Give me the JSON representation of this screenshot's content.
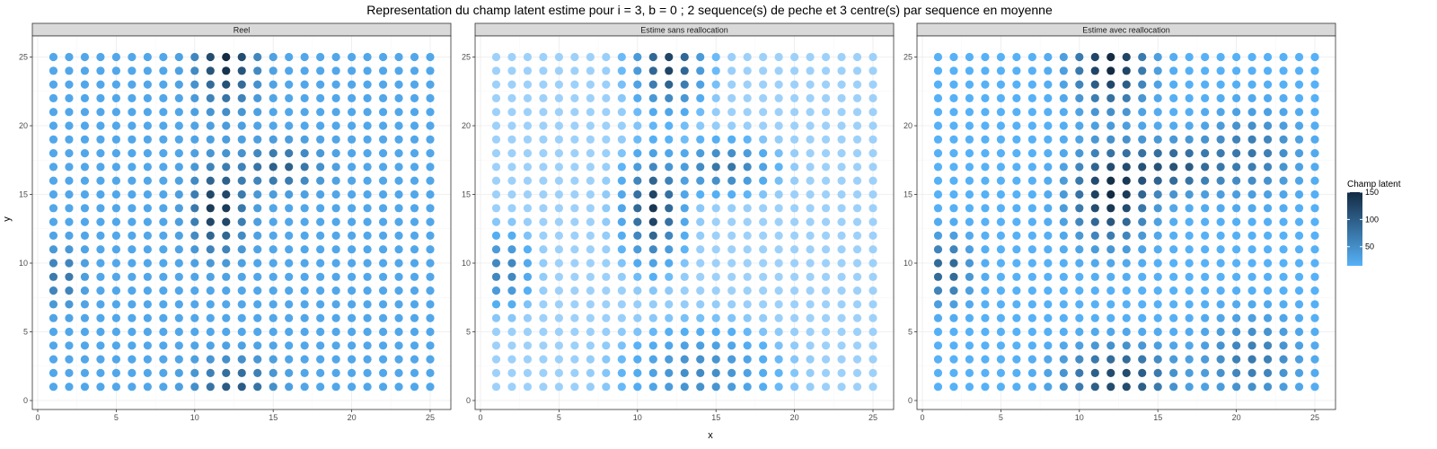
{
  "chart_data": {
    "type": "scatter",
    "title": "Representation du champ latent estime pour i = 3, b = 0 ; 2 sequence(s) de peche et 3 centre(s) par sequence en moyenne",
    "xlabel": "x",
    "ylabel": "y",
    "xlim": [
      0,
      26
    ],
    "ylim": [
      0,
      26
    ],
    "xticks": [
      0,
      5,
      10,
      15,
      20,
      25
    ],
    "yticks": [
      0,
      5,
      10,
      15,
      20,
      25
    ],
    "grid": true,
    "grid_x": [
      1,
      25
    ],
    "grid_y": [
      1,
      25
    ],
    "legend": {
      "title": "Champ latent",
      "position": "right",
      "range": [
        15,
        150
      ],
      "ticks": [
        50,
        100,
        150
      ],
      "color_low": "#56B1F7",
      "color_high": "#132B43"
    },
    "color_scale": "continuous gradient on Champ latent, low #56B1F7, high #132B43; estimated panels fade toward white where the latent field is near zero",
    "panels": [
      {
        "title": "Reel",
        "base": 25,
        "fade": 0,
        "hotspots": [
          {
            "x": 12,
            "y": 25,
            "height": 130,
            "sx": 1.2,
            "sy": 2.2
          },
          {
            "x": 11.5,
            "y": 14,
            "height": 120,
            "sx": 1.1,
            "sy": 2.0
          },
          {
            "x": 15.5,
            "y": 17,
            "height": 75,
            "sx": 1.6,
            "sy": 1.0
          },
          {
            "x": 1.5,
            "y": 9,
            "height": 55,
            "sx": 0.8,
            "sy": 1.3
          },
          {
            "x": 12.5,
            "y": 1,
            "height": 80,
            "sx": 1.6,
            "sy": 1.3
          }
        ]
      },
      {
        "title": "Estime sans reallocation",
        "base": 8,
        "fade": 1,
        "hotspots": [
          {
            "x": 12,
            "y": 24.5,
            "height": 120,
            "sx": 1.2,
            "sy": 1.8
          },
          {
            "x": 11,
            "y": 14,
            "height": 130,
            "sx": 1.0,
            "sy": 2.1
          },
          {
            "x": 15.5,
            "y": 17,
            "height": 70,
            "sx": 1.6,
            "sy": 1.0
          },
          {
            "x": 1.5,
            "y": 9.5,
            "height": 60,
            "sx": 0.9,
            "sy": 1.4
          },
          {
            "x": 14,
            "y": 2,
            "height": 45,
            "sx": 2.5,
            "sy": 1.8
          }
        ]
      },
      {
        "title": "Estime avec reallocation",
        "base": 15,
        "fade": 1,
        "hotspots": [
          {
            "x": 12,
            "y": 24.5,
            "height": 140,
            "sx": 1.5,
            "sy": 2.0
          },
          {
            "x": 12,
            "y": 15,
            "height": 135,
            "sx": 1.6,
            "sy": 2.2
          },
          {
            "x": 16,
            "y": 17,
            "height": 90,
            "sx": 2.0,
            "sy": 1.2
          },
          {
            "x": 1.5,
            "y": 9.5,
            "height": 85,
            "sx": 1.0,
            "sy": 1.5
          },
          {
            "x": 12.5,
            "y": 1.5,
            "height": 110,
            "sx": 2.2,
            "sy": 1.6
          },
          {
            "x": 21,
            "y": 18,
            "height": 55,
            "sx": 2.0,
            "sy": 2.0
          },
          {
            "x": 21,
            "y": 3,
            "height": 55,
            "sx": 2.0,
            "sy": 2.0
          }
        ]
      }
    ]
  }
}
